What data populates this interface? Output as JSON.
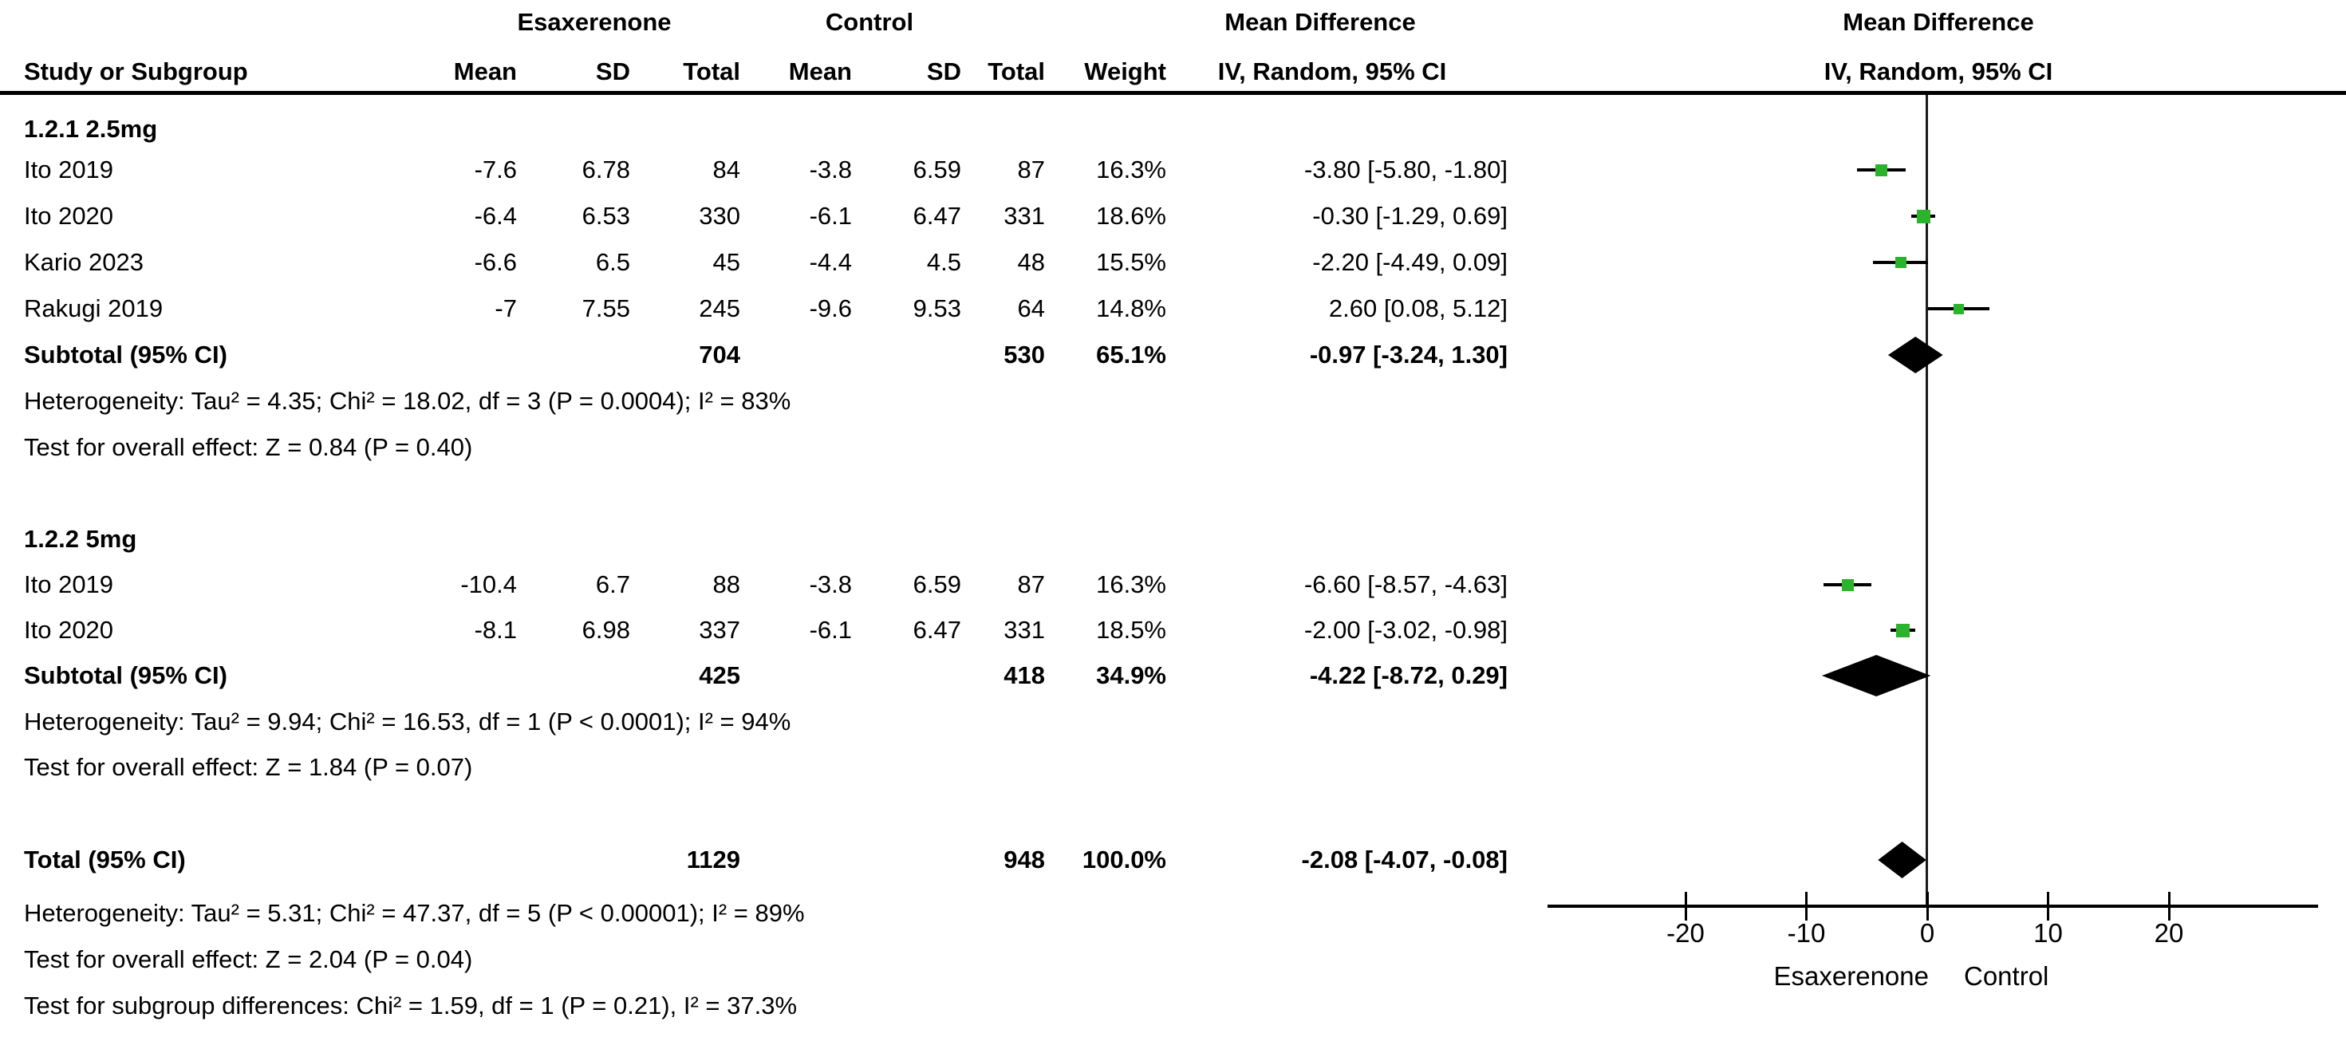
{
  "header": {
    "group_experimental": "Esaxerenone",
    "group_control": "Control",
    "group_md_text": "Mean Difference",
    "group_md_plot": "Mean Difference",
    "study": "Study or Subgroup",
    "mean1": "Mean",
    "sd1": "SD",
    "total1": "Total",
    "mean2": "Mean",
    "sd2": "SD",
    "total2": "Total",
    "weight": "Weight",
    "ci_text": "IV, Random, 95% CI",
    "ci_plot": "IV, Random, 95% CI"
  },
  "subgroup1": {
    "label": "1.2.1 2.5mg",
    "studies": [
      {
        "study": "Ito 2019",
        "mean": "-7.6",
        "sd": "6.78",
        "total": "84",
        "mean2": "-3.8",
        "sd2": "6.59",
        "total2": "87",
        "weight": "16.3%",
        "ci": "-3.80 [-5.80, -1.80]"
      },
      {
        "study": "Ito 2020",
        "mean": "-6.4",
        "sd": "6.53",
        "total": "330",
        "mean2": "-6.1",
        "sd2": "6.47",
        "total2": "331",
        "weight": "18.6%",
        "ci": "-0.30 [-1.29, 0.69]"
      },
      {
        "study": "Kario 2023",
        "mean": "-6.6",
        "sd": "6.5",
        "total": "45",
        "mean2": "-4.4",
        "sd2": "4.5",
        "total2": "48",
        "weight": "15.5%",
        "ci": "-2.20 [-4.49, 0.09]"
      },
      {
        "study": "Rakugi 2019",
        "mean": "-7",
        "sd": "7.55",
        "total": "245",
        "mean2": "-9.6",
        "sd2": "9.53",
        "total2": "64",
        "weight": "14.8%",
        "ci": "2.60 [0.08, 5.12]"
      }
    ],
    "subtotal": {
      "label": "Subtotal (95% CI)",
      "total": "704",
      "total2": "530",
      "weight": "65.1%",
      "ci": "-0.97 [-3.24, 1.30]"
    },
    "heterogeneity": "Heterogeneity: Tau² = 4.35; Chi² = 18.02, df = 3 (P = 0.0004); I² = 83%",
    "overall_effect": "Test for overall effect: Z = 0.84 (P = 0.40)"
  },
  "subgroup2": {
    "label": "1.2.2 5mg",
    "studies": [
      {
        "study": "Ito 2019",
        "mean": "-10.4",
        "sd": "6.7",
        "total": "88",
        "mean2": "-3.8",
        "sd2": "6.59",
        "total2": "87",
        "weight": "16.3%",
        "ci": "-6.60 [-8.57, -4.63]"
      },
      {
        "study": "Ito 2020",
        "mean": "-8.1",
        "sd": "6.98",
        "total": "337",
        "mean2": "-6.1",
        "sd2": "6.47",
        "total2": "331",
        "weight": "18.5%",
        "ci": "-2.00 [-3.02, -0.98]"
      }
    ],
    "subtotal": {
      "label": "Subtotal (95% CI)",
      "total": "425",
      "total2": "418",
      "weight": "34.9%",
      "ci": "-4.22 [-8.72, 0.29]"
    },
    "heterogeneity": "Heterogeneity: Tau² = 9.94; Chi² = 16.53, df = 1 (P < 0.0001); I² = 94%",
    "overall_effect": "Test for overall effect: Z = 1.84 (P = 0.07)"
  },
  "total": {
    "label": "Total (95% CI)",
    "total": "1129",
    "total2": "948",
    "weight": "100.0%",
    "ci": "-2.08 [-4.07, -0.08]",
    "heterogeneity": "Heterogeneity: Tau² = 5.31; Chi² = 47.37, df = 5 (P < 0.00001); I² = 89%",
    "overall_effect": "Test for overall effect: Z = 2.04 (P = 0.04)",
    "subgroup_diff": "Test for subgroup differences: Chi² = 1.59, df = 1 (P = 0.21), I² = 37.3%"
  },
  "chart_data": {
    "type": "forest",
    "effect_measure": "Mean Difference, IV, Random, 95% CI",
    "marker_color": "#2CB32C",
    "axis": {
      "ticks": [
        -20,
        -10,
        0,
        10,
        20
      ],
      "min": -31,
      "max": 32,
      "label_left": "Esaxerenone",
      "label_right": "Control",
      "grid": false
    },
    "points": [
      {
        "id": "s1-0",
        "study": "Ito 2019 (2.5mg)",
        "md": -3.8,
        "lo": -5.8,
        "hi": -1.8,
        "weight": 16.3
      },
      {
        "id": "s1-1",
        "study": "Ito 2020 (2.5mg)",
        "md": -0.3,
        "lo": -1.29,
        "hi": 0.69,
        "weight": 18.6
      },
      {
        "id": "s1-2",
        "study": "Kario 2023 (2.5mg)",
        "md": -2.2,
        "lo": -4.49,
        "hi": 0.09,
        "weight": 15.5
      },
      {
        "id": "s1-3",
        "study": "Rakugi 2019 (2.5mg)",
        "md": 2.6,
        "lo": 0.08,
        "hi": 5.12,
        "weight": 14.8
      },
      {
        "id": "s2-0",
        "study": "Ito 2019 (5mg)",
        "md": -6.6,
        "lo": -8.57,
        "hi": -4.63,
        "weight": 16.3
      },
      {
        "id": "s2-1",
        "study": "Ito 2020 (5mg)",
        "md": -2.0,
        "lo": -3.02,
        "hi": -0.98,
        "weight": 18.5
      }
    ],
    "diamonds": [
      {
        "id": "sub1",
        "label": "Subtotal 2.5mg",
        "md": -0.97,
        "lo": -3.24,
        "hi": 1.3
      },
      {
        "id": "sub2",
        "label": "Subtotal 5mg",
        "md": -4.22,
        "lo": -8.72,
        "hi": 0.29
      },
      {
        "id": "total",
        "label": "Total",
        "md": -2.08,
        "lo": -4.07,
        "hi": -0.08
      }
    ]
  }
}
